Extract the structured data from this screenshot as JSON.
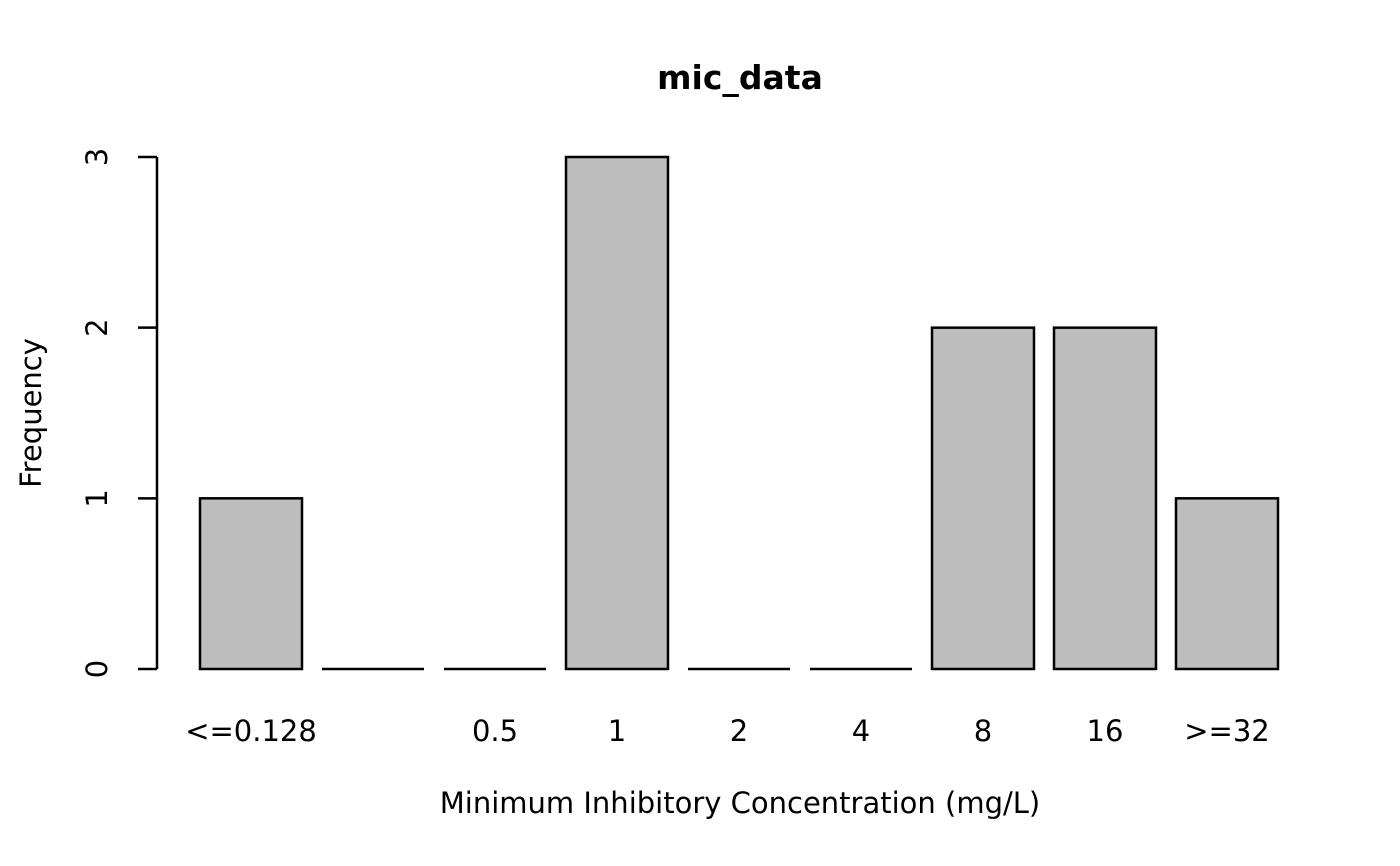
{
  "chart_data": {
    "type": "bar",
    "title": "mic_data",
    "xlabel": "Minimum Inhibitory Concentration (mg/L)",
    "ylabel": "Frequency",
    "categories": [
      "<=0.128",
      "",
      "0.5",
      "1",
      "2",
      "4",
      "8",
      "16",
      ">=32"
    ],
    "values": [
      1,
      0,
      0,
      3,
      0,
      0,
      2,
      2,
      1
    ],
    "yticks": [
      0,
      1,
      2,
      3
    ],
    "ylim": [
      0,
      3
    ],
    "grid": false,
    "legend": false,
    "colors": {
      "bar_fill": "#BEBEBE",
      "bar_stroke": "#000000",
      "axis": "#000000",
      "background": "#ffffff"
    }
  }
}
